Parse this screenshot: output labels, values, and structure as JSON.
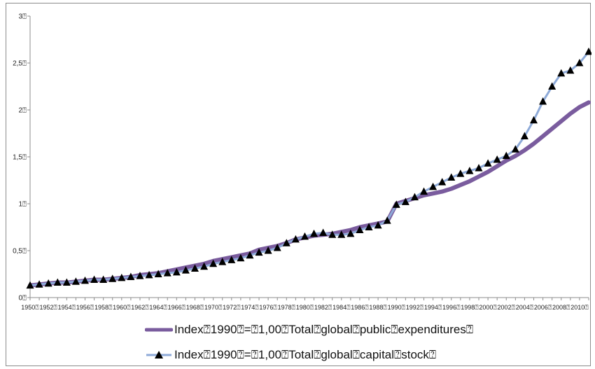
{
  "chart_data": {
    "type": "line",
    "title": "",
    "xlabel": "",
    "ylabel": "",
    "ylim": [
      0,
      3
    ],
    "yticks": [
      "0⍰",
      "0,5⍰",
      "1⍰",
      "1,5⍰",
      "2⍰",
      "2,5⍰",
      "3⍰"
    ],
    "xtick_labels": [
      "1950⍰",
      "1952⍰",
      "1954⍰",
      "1956⍰",
      "1958⍰",
      "1960⍰",
      "1962⍰",
      "1964⍰",
      "1966⍰",
      "1968⍰",
      "1970⍰",
      "1972⍰",
      "1974⍰",
      "1976⍰",
      "1978⍰",
      "1980⍰",
      "1982⍰",
      "1984⍰",
      "1986⍰",
      "1988⍰",
      "1990⍰",
      "1992⍰",
      "1994⍰",
      "1996⍰",
      "1998⍰",
      "2000⍰",
      "2002⍰",
      "2004⍰",
      "2006⍰",
      "2008⍰",
      "2010⍰"
    ],
    "x": [
      1950,
      1951,
      1952,
      1953,
      1954,
      1955,
      1956,
      1957,
      1958,
      1959,
      1960,
      1961,
      1962,
      1963,
      1964,
      1965,
      1966,
      1967,
      1968,
      1969,
      1970,
      1971,
      1972,
      1973,
      1974,
      1975,
      1976,
      1977,
      1978,
      1979,
      1980,
      1981,
      1982,
      1983,
      1984,
      1985,
      1986,
      1987,
      1988,
      1989,
      1990,
      1991,
      1992,
      1993,
      1994,
      1995,
      1996,
      1997,
      1998,
      1999,
      2000,
      2001,
      2002,
      2003,
      2004,
      2005,
      2006,
      2007,
      2008,
      2009,
      2010,
      2011
    ],
    "grid": false,
    "legend_position": "bottom",
    "series": [
      {
        "name": "Index⍰1990⍰=⍰1,00⍰Total⍰global⍰public⍰expenditures⍰",
        "color": "#7a5c9e",
        "marker": "none",
        "values": [
          0.13,
          0.14,
          0.15,
          0.16,
          0.16,
          0.17,
          0.18,
          0.19,
          0.19,
          0.2,
          0.21,
          0.22,
          0.24,
          0.25,
          0.26,
          0.28,
          0.3,
          0.32,
          0.34,
          0.36,
          0.39,
          0.41,
          0.43,
          0.45,
          0.47,
          0.51,
          0.53,
          0.55,
          0.58,
          0.62,
          0.64,
          0.66,
          0.67,
          0.68,
          0.7,
          0.72,
          0.75,
          0.77,
          0.79,
          0.81,
          1.0,
          1.03,
          1.06,
          1.09,
          1.11,
          1.13,
          1.16,
          1.2,
          1.24,
          1.29,
          1.34,
          1.4,
          1.46,
          1.51,
          1.57,
          1.64,
          1.72,
          1.8,
          1.88,
          1.96,
          2.03,
          2.08
        ]
      },
      {
        "name": "Index⍰1990⍰=⍰1,00⍰Total⍰global⍰capital⍰stock⍰",
        "color": "#8eaad8",
        "marker": "triangle",
        "values": [
          0.13,
          0.14,
          0.15,
          0.16,
          0.16,
          0.17,
          0.18,
          0.19,
          0.19,
          0.2,
          0.21,
          0.22,
          0.23,
          0.24,
          0.25,
          0.26,
          0.27,
          0.29,
          0.31,
          0.33,
          0.36,
          0.38,
          0.4,
          0.42,
          0.45,
          0.48,
          0.5,
          0.53,
          0.58,
          0.62,
          0.65,
          0.68,
          0.69,
          0.67,
          0.67,
          0.68,
          0.72,
          0.75,
          0.77,
          0.82,
          0.99,
          1.02,
          1.07,
          1.13,
          1.18,
          1.23,
          1.28,
          1.32,
          1.35,
          1.38,
          1.43,
          1.47,
          1.51,
          1.58,
          1.72,
          1.89,
          2.09,
          2.25,
          2.39,
          2.42,
          2.5,
          2.62
        ]
      }
    ]
  }
}
